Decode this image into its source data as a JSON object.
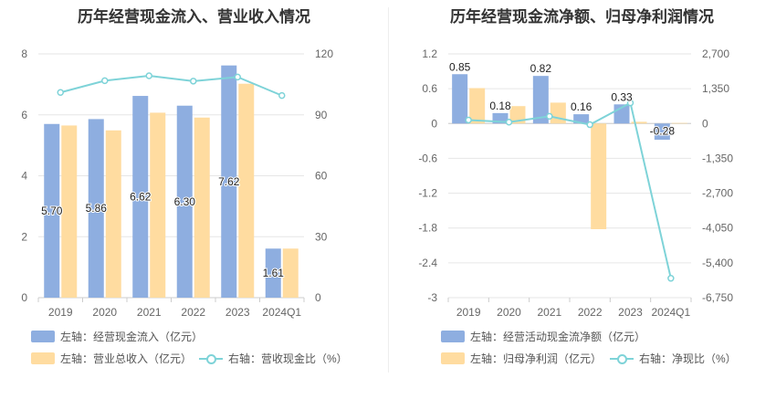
{
  "colors": {
    "bar_primary": "#8eaee0",
    "bar_secondary": "#ffdca0",
    "line": "#7ed3d8",
    "grid": "#e6e6e6",
    "axis_text": "#666666"
  },
  "chart_data": [
    {
      "type": "bar",
      "title": "历年经营现金流入、营业收入情况",
      "categories": [
        "2019",
        "2020",
        "2021",
        "2022",
        "2023",
        "2024Q1"
      ],
      "y_left": {
        "ticks": [
          "0",
          "2",
          "4",
          "6",
          "8"
        ],
        "ylim": [
          0,
          8
        ]
      },
      "y_right": {
        "ticks": [
          "0",
          "30",
          "60",
          "90",
          "120"
        ],
        "ylim": [
          0,
          120
        ]
      },
      "series": [
        {
          "name": "左轴：经营现金流入（亿元）",
          "type": "bar",
          "axis": "left",
          "values": [
            5.7,
            5.86,
            6.62,
            6.3,
            7.62,
            1.61
          ],
          "labels": [
            "5.70",
            "5.86",
            "6.62",
            "6.30",
            "7.62",
            "1.61"
          ]
        },
        {
          "name": "左轴：营业总收入（亿元）",
          "type": "bar",
          "axis": "left",
          "values": [
            5.65,
            5.49,
            6.07,
            5.91,
            7.02,
            1.61
          ]
        },
        {
          "name": "右轴：营收现金比（%）",
          "type": "line",
          "axis": "right",
          "values": [
            101,
            106.8,
            109.2,
            106.6,
            108.6,
            99.5
          ]
        }
      ],
      "grid": true,
      "legend_position": "bottom-left"
    },
    {
      "type": "bar",
      "title": "历年经营现金流净额、归母净利润情况",
      "categories": [
        "2019",
        "2020",
        "2021",
        "2022",
        "2023",
        "2024Q1"
      ],
      "y_left": {
        "ticks": [
          "1.2",
          "0.6",
          "0",
          "-0.6",
          "-1.2",
          "-1.8",
          "-2.4",
          "-3"
        ],
        "ylim": [
          -3,
          1.2
        ]
      },
      "y_right": {
        "ticks": [
          "2,700",
          "1,350",
          "0",
          "-1,350",
          "-2,700",
          "-4,050",
          "-5,400",
          "-6,750"
        ],
        "ylim": [
          -6750,
          2700
        ]
      },
      "series": [
        {
          "name": "左轴：经营活动现金流净额（亿元）",
          "type": "bar",
          "axis": "left",
          "values": [
            0.85,
            0.18,
            0.82,
            0.16,
            0.33,
            -0.28
          ],
          "labels": [
            "0.85",
            "0.18",
            "0.82",
            "0.16",
            "0.33",
            "-0.28"
          ]
        },
        {
          "name": "左轴：归母净利润（亿元）",
          "type": "bar",
          "axis": "left",
          "values": [
            0.61,
            0.3,
            0.36,
            -1.82,
            0.03,
            0.01
          ]
        },
        {
          "name": "右轴：净现比（%）",
          "type": "line",
          "axis": "right",
          "values": [
            135,
            55,
            280,
            -45,
            800,
            -6000
          ]
        }
      ],
      "grid": true,
      "legend_position": "bottom-left"
    }
  ]
}
